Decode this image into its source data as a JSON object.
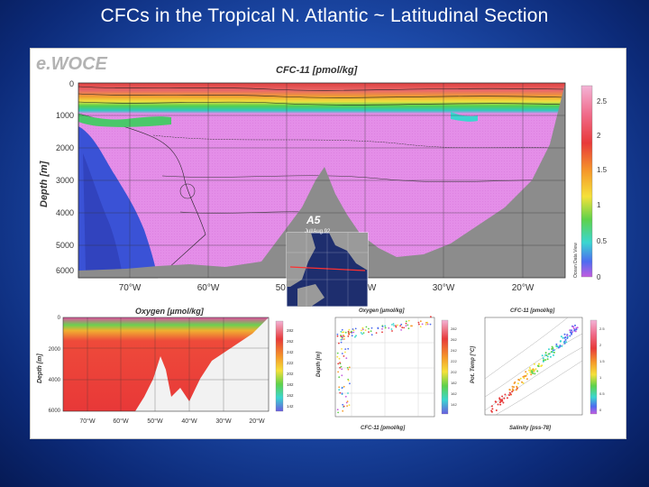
{
  "slide": {
    "title": "CFCs in the Tropical N. Atlantic  ~ Latitudinal Section",
    "brand": "e.WOCE"
  },
  "colors": {
    "background": "#1f4fb0",
    "bathymetry": "#8c8c8c",
    "cfc_high": "#e83a3a",
    "cfc_mid": "#e089e6",
    "cfc_low": "#2a44c8"
  },
  "main_section": {
    "title": "CFC-11 [pmol/kg]",
    "ylabel": "Depth [m]",
    "y_ticks": [
      "0",
      "1000",
      "2000",
      "3000",
      "4000",
      "5000",
      "6000"
    ],
    "x_ticks": [
      "70°W",
      "60°W",
      "50°W",
      "40°W",
      "30°W",
      "20°W"
    ],
    "colorbar_ticks": [
      "2.5",
      "2",
      "1.5",
      "1",
      "0.5",
      "0"
    ],
    "colorbar_caption": "Ocean Data View",
    "inset_label": "A5",
    "inset_sublabel": "Jul/Aug 92"
  },
  "oxygen_section": {
    "title": "Oxygen [µmol/kg]",
    "ylabel": "Depth [m]",
    "y_ticks": [
      "0",
      "2000",
      "4000",
      "6000"
    ],
    "x_ticks": [
      "70°W",
      "60°W",
      "50°W",
      "40°W",
      "30°W",
      "20°W"
    ],
    "colorbar_ticks": [
      "282",
      "262",
      "242",
      "222",
      "202",
      "182",
      "162",
      "142"
    ]
  },
  "scatter_oxygen": {
    "title": "Oxygen [µmol/kg]",
    "xlabel": "CFC-11 [pmol/kg]",
    "ylabel": "Depth [m]",
    "colorbar_ticks": [
      "282",
      "262",
      "242",
      "222",
      "202",
      "182",
      "162",
      "142"
    ]
  },
  "scatter_ts": {
    "title": "CFC-11 [pmol/kg]",
    "xlabel": "Salinity [pss-78]",
    "ylabel": "Pot. Temp [°C]",
    "colorbar_ticks": [
      "2.5",
      "2",
      "1.5",
      "1",
      "0.5",
      "0"
    ]
  },
  "chart_data": [
    {
      "type": "heatmap",
      "title": "CFC-11 [pmol/kg]",
      "ylabel": "Depth [m]",
      "xlabel": "",
      "x_ticks": [
        "70°W",
        "60°W",
        "50°W",
        "40°W",
        "30°W",
        "20°W"
      ],
      "y_ticks": [
        0,
        1000,
        2000,
        3000,
        4000,
        5000,
        6000
      ],
      "ylim": [
        6000,
        0
      ],
      "color_range": [
        0,
        2.5
      ],
      "colorbar_ticks": [
        2.5,
        2,
        1.5,
        1,
        0.5,
        0
      ]
    },
    {
      "type": "heatmap",
      "title": "Oxygen [µmol/kg]",
      "ylabel": "Depth [m]",
      "x_ticks": [
        "70°W",
        "60°W",
        "50°W",
        "40°W",
        "30°W",
        "20°W"
      ],
      "y_ticks": [
        0,
        2000,
        4000,
        6000
      ],
      "color_range": [
        142,
        282
      ]
    },
    {
      "type": "scatter",
      "title": "Oxygen [µmol/kg]",
      "xlabel": "CFC-11 [pmol/kg]",
      "ylabel": "Depth [m]"
    },
    {
      "type": "scatter",
      "title": "CFC-11 [pmol/kg]",
      "xlabel": "Salinity [pss-78]",
      "ylabel": "Pot. Temp [°C]"
    }
  ]
}
